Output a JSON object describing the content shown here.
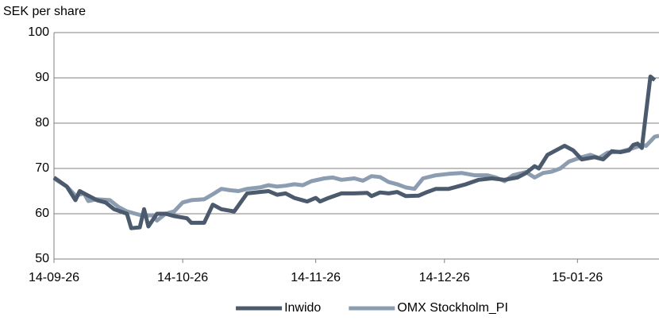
{
  "chart_data": {
    "type": "line",
    "y_axis_label": "SEK per share",
    "xlim": [
      "14-09-26",
      "15-02-14"
    ],
    "xticks": [
      "14-09-26",
      "14-10-26",
      "14-11-26",
      "14-12-26",
      "15-01-26"
    ],
    "ylim": [
      50,
      100
    ],
    "yticks": [
      50,
      60,
      70,
      80,
      90,
      100
    ],
    "grid": true,
    "legend": "bottom",
    "series": [
      {
        "name": "Inwido",
        "color": "#4b5a6d",
        "x": [
          "14-09-26",
          "14-09-29",
          "14-10-01",
          "14-10-02",
          "14-10-03",
          "14-10-06",
          "14-10-08",
          "14-10-10",
          "14-10-13",
          "14-10-14",
          "14-10-16",
          "14-10-17",
          "14-10-18",
          "14-10-20",
          "14-10-22",
          "14-10-24",
          "14-10-27",
          "14-10-28",
          "14-10-31",
          "14-11-02",
          "14-11-04",
          "14-11-07",
          "14-11-10",
          "14-11-13",
          "14-11-15",
          "14-11-17",
          "14-11-19",
          "14-11-21",
          "14-11-24",
          "14-11-26",
          "14-11-27",
          "14-11-29",
          "14-12-02",
          "14-12-05",
          "14-12-08",
          "14-12-09",
          "14-12-11",
          "14-12-13",
          "14-12-15",
          "14-12-17",
          "14-12-20",
          "14-12-22",
          "14-12-24",
          "14-12-27",
          "14-12-31",
          "15-01-03",
          "15-01-06",
          "15-01-09",
          "15-01-12",
          "15-01-14",
          "15-01-16",
          "15-01-17",
          "15-01-19",
          "15-01-22",
          "15-01-23",
          "15-01-25",
          "15-01-27",
          "15-01-30",
          "15-02-01",
          "15-02-03",
          "15-02-05",
          "15-02-07",
          "15-02-08",
          "15-02-09",
          "15-02-10",
          "15-02-11",
          "15-02-12",
          "15-02-13"
        ],
        "values": [
          68,
          66,
          63,
          65,
          64.5,
          63,
          62.5,
          61,
          60,
          56.8,
          57,
          61,
          57.2,
          60,
          60,
          59.5,
          59,
          58,
          58,
          62,
          61,
          60.5,
          64.5,
          64.8,
          65,
          64.2,
          64.5,
          63.5,
          62.7,
          63.5,
          62.7,
          63.5,
          64.5,
          64.5,
          64.6,
          63.9,
          64.7,
          64.5,
          64.8,
          63.9,
          64,
          64.8,
          65.5,
          65.5,
          66.5,
          67.5,
          67.8,
          67.5,
          68,
          69,
          70.5,
          70,
          73,
          74.5,
          75,
          74,
          72,
          72.5,
          72,
          73.8,
          73.6,
          74,
          75.2,
          75.5,
          74.5,
          82.5,
          90.3,
          89.5
        ]
      },
      {
        "name": "OMX Stockholm_PI",
        "color": "#8d9db1",
        "x": [
          "14-09-26",
          "14-09-29",
          "14-10-01",
          "14-10-03",
          "14-10-04",
          "14-10-06",
          "14-10-09",
          "14-10-11",
          "14-10-13",
          "14-10-15",
          "14-10-17",
          "14-10-19",
          "14-10-20",
          "14-10-22",
          "14-10-24",
          "14-10-26",
          "14-10-28",
          "14-10-31",
          "14-11-02",
          "14-11-04",
          "14-11-06",
          "14-11-08",
          "14-11-10",
          "14-11-13",
          "14-11-15",
          "14-11-17",
          "14-11-19",
          "14-11-21",
          "14-11-23",
          "14-11-25",
          "14-11-28",
          "14-11-30",
          "14-12-02",
          "14-12-05",
          "14-12-07",
          "14-12-09",
          "14-12-11",
          "14-12-13",
          "14-12-15",
          "14-12-17",
          "14-12-19",
          "14-12-21",
          "14-12-24",
          "14-12-27",
          "14-12-30",
          "15-01-02",
          "15-01-05",
          "15-01-07",
          "15-01-09",
          "15-01-11",
          "15-01-14",
          "15-01-16",
          "15-01-18",
          "15-01-20",
          "15-01-22",
          "15-01-24",
          "15-01-27",
          "15-01-29",
          "15-01-31",
          "15-02-02",
          "15-02-05",
          "15-02-07",
          "15-02-09",
          "15-02-10",
          "15-02-11",
          "15-02-13",
          "15-02-14"
        ],
        "values": [
          67.8,
          66,
          64,
          64.5,
          62.8,
          63.2,
          63,
          61.5,
          60.5,
          60,
          59.5,
          59.7,
          58.5,
          60,
          60.5,
          62.5,
          63,
          63.2,
          64.3,
          65.5,
          65.2,
          65,
          65.5,
          65.8,
          66.3,
          66,
          66.2,
          66.5,
          66.3,
          67.2,
          67.8,
          68,
          67.5,
          67.8,
          67.3,
          68.3,
          68.1,
          67,
          66.5,
          65.8,
          65.5,
          67.8,
          68.5,
          68.8,
          69,
          68.5,
          68.5,
          68,
          67.2,
          68.5,
          69.2,
          68,
          69,
          69.3,
          70,
          71.5,
          72.5,
          73,
          72.3,
          73.5,
          73.7,
          74.2,
          74.8,
          75.2,
          75,
          77,
          77.2
        ]
      }
    ]
  }
}
